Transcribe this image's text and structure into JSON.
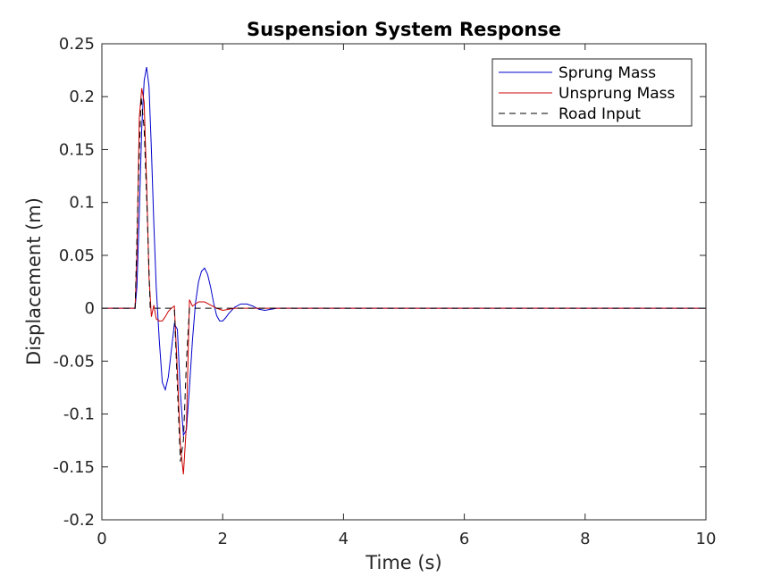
{
  "chart_data": {
    "type": "line",
    "title": "Suspension System Response",
    "xlabel": "Time (s)",
    "ylabel": "Displacement (m)",
    "xlim": [
      0,
      10
    ],
    "ylim": [
      -0.2,
      0.25
    ],
    "xticks": [
      0,
      2,
      4,
      6,
      8,
      10
    ],
    "xtick_labels": [
      "0",
      "2",
      "4",
      "6",
      "8",
      "10"
    ],
    "yticks": [
      -0.2,
      -0.15,
      -0.1,
      -0.05,
      0,
      0.05,
      0.1,
      0.15,
      0.2,
      0.25
    ],
    "ytick_labels": [
      "-0.2",
      "-0.15",
      "-0.1",
      "-0.05",
      "0",
      "0.05",
      "0.1",
      "0.15",
      "0.2",
      "0.25"
    ],
    "grid": false,
    "legend_position": "top-right",
    "series": [
      {
        "name": "Sprung Mass",
        "color": "#0000cc",
        "style": "solid",
        "x": [
          0,
          0.55,
          0.58,
          0.62,
          0.66,
          0.7,
          0.74,
          0.78,
          0.82,
          0.86,
          0.9,
          0.95,
          1.0,
          1.05,
          1.1,
          1.15,
          1.2,
          1.25,
          1.3,
          1.35,
          1.4,
          1.45,
          1.5,
          1.55,
          1.6,
          1.65,
          1.7,
          1.75,
          1.8,
          1.85,
          1.9,
          1.95,
          2.0,
          2.05,
          2.1,
          2.2,
          2.3,
          2.4,
          2.5,
          2.6,
          2.7,
          2.8,
          2.9,
          3.0,
          10
        ],
        "y": [
          0,
          0,
          0.02,
          0.09,
          0.17,
          0.215,
          0.228,
          0.21,
          0.15,
          0.08,
          0.02,
          -0.03,
          -0.07,
          -0.077,
          -0.065,
          -0.04,
          -0.015,
          -0.02,
          -0.08,
          -0.12,
          -0.115,
          -0.075,
          -0.03,
          0.005,
          0.025,
          0.035,
          0.038,
          0.032,
          0.02,
          0.005,
          -0.007,
          -0.012,
          -0.012,
          -0.009,
          -0.005,
          0.001,
          0.004,
          0.004,
          0.002,
          -0.001,
          -0.002,
          -0.001,
          0,
          0,
          0
        ]
      },
      {
        "name": "Unsprung Mass",
        "color": "#cc0000",
        "style": "solid",
        "x": [
          0,
          0.55,
          0.58,
          0.62,
          0.66,
          0.7,
          0.74,
          0.78,
          0.82,
          0.86,
          0.9,
          0.95,
          1.0,
          1.05,
          1.1,
          1.15,
          1.2,
          1.25,
          1.3,
          1.35,
          1.4,
          1.45,
          1.5,
          1.55,
          1.6,
          1.7,
          1.8,
          1.9,
          2.0,
          2.1,
          2.2,
          2.4,
          2.6,
          10
        ],
        "y": [
          0,
          0,
          0.05,
          0.18,
          0.208,
          0.195,
          0.12,
          0.03,
          -0.008,
          0.003,
          -0.01,
          -0.012,
          -0.012,
          -0.008,
          -0.003,
          0.0,
          0.002,
          -0.06,
          -0.13,
          -0.157,
          -0.11,
          0.008,
          0.002,
          0.004,
          0.006,
          0.006,
          0.003,
          0.0,
          -0.002,
          -0.001,
          0.0,
          0.0,
          0.0,
          0
        ]
      },
      {
        "name": "Road Input",
        "color": "#000000",
        "style": "dashed",
        "x": [
          0,
          0.55,
          0.6,
          0.65,
          0.7,
          0.75,
          0.8,
          0.85,
          1.15,
          1.2,
          1.25,
          1.3,
          1.35,
          1.4,
          1.45,
          10
        ],
        "y": [
          0,
          0,
          0.11,
          0.2,
          0.17,
          0.09,
          0.0,
          0,
          0,
          0,
          -0.075,
          -0.145,
          -0.125,
          -0.05,
          0,
          0
        ]
      }
    ]
  }
}
